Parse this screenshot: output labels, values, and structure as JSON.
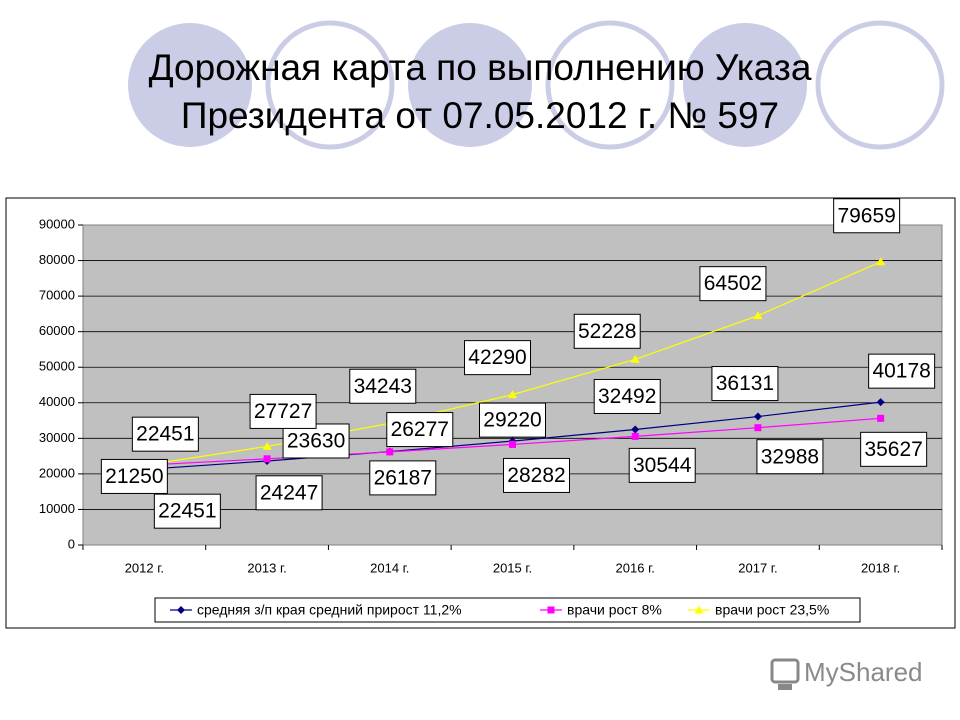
{
  "chart_data": {
    "type": "line",
    "title": [
      "Дорожная карта по выполнению Указа",
      "Президента от 07.05.2012 г. № 597"
    ],
    "categories": [
      "2012 г.",
      "2013 г.",
      "2014 г.",
      "2015 г.",
      "2016 г.",
      "2017 г.",
      "2018 г."
    ],
    "series": [
      {
        "name": "средняя з/п края средний прирост 11,2%",
        "color": "#000080",
        "marker": "diamond",
        "values": [
          21250,
          23630,
          26277,
          29220,
          32492,
          36131,
          40178
        ]
      },
      {
        "name": "врачи рост 8%",
        "color": "#ff00ff",
        "marker": "square",
        "values": [
          22451,
          24247,
          26187,
          28282,
          30544,
          32988,
          35627
        ]
      },
      {
        "name": "врачи рост 23,5%",
        "color": "#ffff00",
        "marker": "triangle",
        "values": [
          22451,
          27727,
          34243,
          42290,
          52228,
          64502,
          79659
        ]
      }
    ],
    "ylim": [
      0,
      90000
    ],
    "yticks": [
      0,
      10000,
      20000,
      30000,
      40000,
      50000,
      60000,
      70000,
      80000,
      90000
    ],
    "grid": true,
    "legend": "bottom",
    "watermark": "MyShared"
  }
}
